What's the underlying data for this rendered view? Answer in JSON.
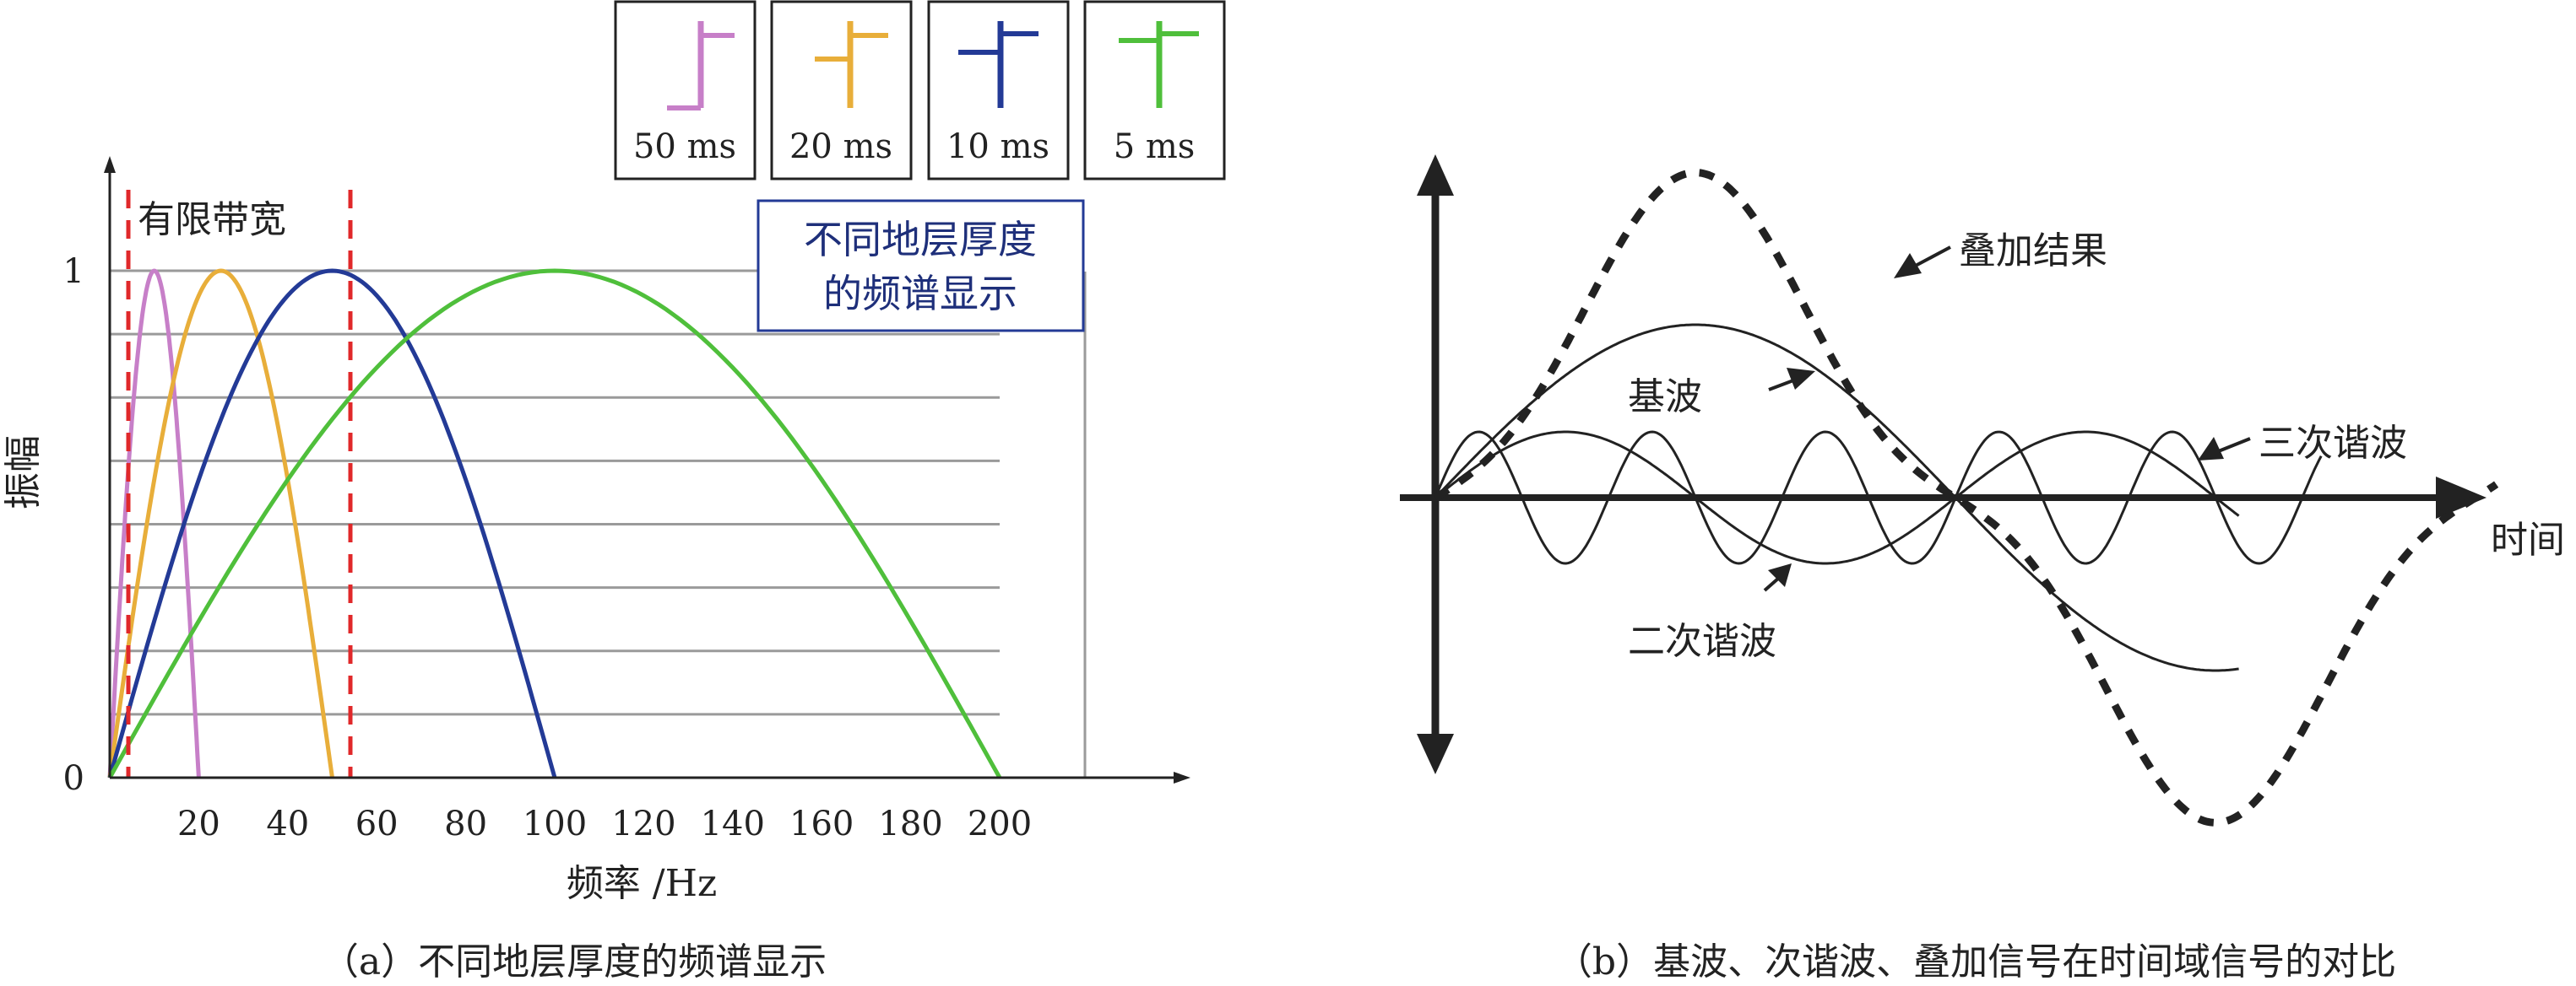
{
  "colors": {
    "50ms": "#c77fc8",
    "20ms": "#e8ae3a",
    "10ms": "#233a96",
    "5ms": "#4fbf3b",
    "bandwidth_marker": "#e0282a",
    "grid": "#9a9a9a",
    "annotation_box": "#233a96",
    "waves": "#222222"
  },
  "panel_a": {
    "caption": "（a）不同地层厚度的频谱显示",
    "annotation": [
      "不同地层厚度",
      "的频谱显示"
    ],
    "bandwidth_label": "有限带宽",
    "legend": [
      "50 ms",
      "20 ms",
      "10 ms",
      "5 ms"
    ]
  },
  "panel_b": {
    "caption": "（b）基波、次谐波、叠加信号在时间域信号的对比",
    "labels": {
      "superposition": "叠加结果",
      "fundamental": "基波",
      "third_harmonic": "三次谐波",
      "second_harmonic": "二次谐波",
      "time_axis": "时间"
    }
  },
  "chart_data": [
    {
      "type": "line",
      "xlabel": "频率 /Hz",
      "ylabel": "振幅",
      "xlim": [
        -1,
        220
      ],
      "ylim": [
        0,
        1.2
      ],
      "x_ticks": [
        20,
        40,
        60,
        80,
        100,
        120,
        140,
        160,
        180,
        200
      ],
      "y_ticks": [
        0,
        1
      ],
      "grid": "horizontal",
      "shaded_band": {
        "label": "有限带宽",
        "x": [
          3,
          50
        ]
      },
      "series": [
        {
          "name": "50 ms",
          "color": "#c77fc8",
          "peak_x": 10,
          "peak_y": 1,
          "x_range": [
            0,
            20
          ]
        },
        {
          "name": "20 ms",
          "color": "#e8ae3a",
          "peak_x": 25,
          "peak_y": 1,
          "x_range": [
            0,
            50
          ]
        },
        {
          "name": "10 ms",
          "color": "#233a96",
          "peak_x": 50,
          "peak_y": 1,
          "x_range": [
            0,
            100
          ]
        },
        {
          "name": "5 ms",
          "color": "#4fbf3b",
          "peak_x": 100,
          "peak_y": 1,
          "x_range": [
            0,
            200
          ]
        }
      ]
    },
    {
      "type": "line",
      "xlabel": "时间",
      "ylabel": "",
      "grid": false,
      "series": [
        {
          "name": "基波",
          "style": "solid",
          "harmonic": 1,
          "amplitude": 1.0
        },
        {
          "name": "二次谐波",
          "style": "solid",
          "harmonic": 2,
          "amplitude": 0.33
        },
        {
          "name": "三次谐波",
          "style": "solid",
          "harmonic": 3,
          "amplitude": 0.33
        },
        {
          "name": "叠加结果",
          "style": "dashed",
          "harmonic": "sum",
          "amplitude": 1.66
        }
      ]
    }
  ]
}
